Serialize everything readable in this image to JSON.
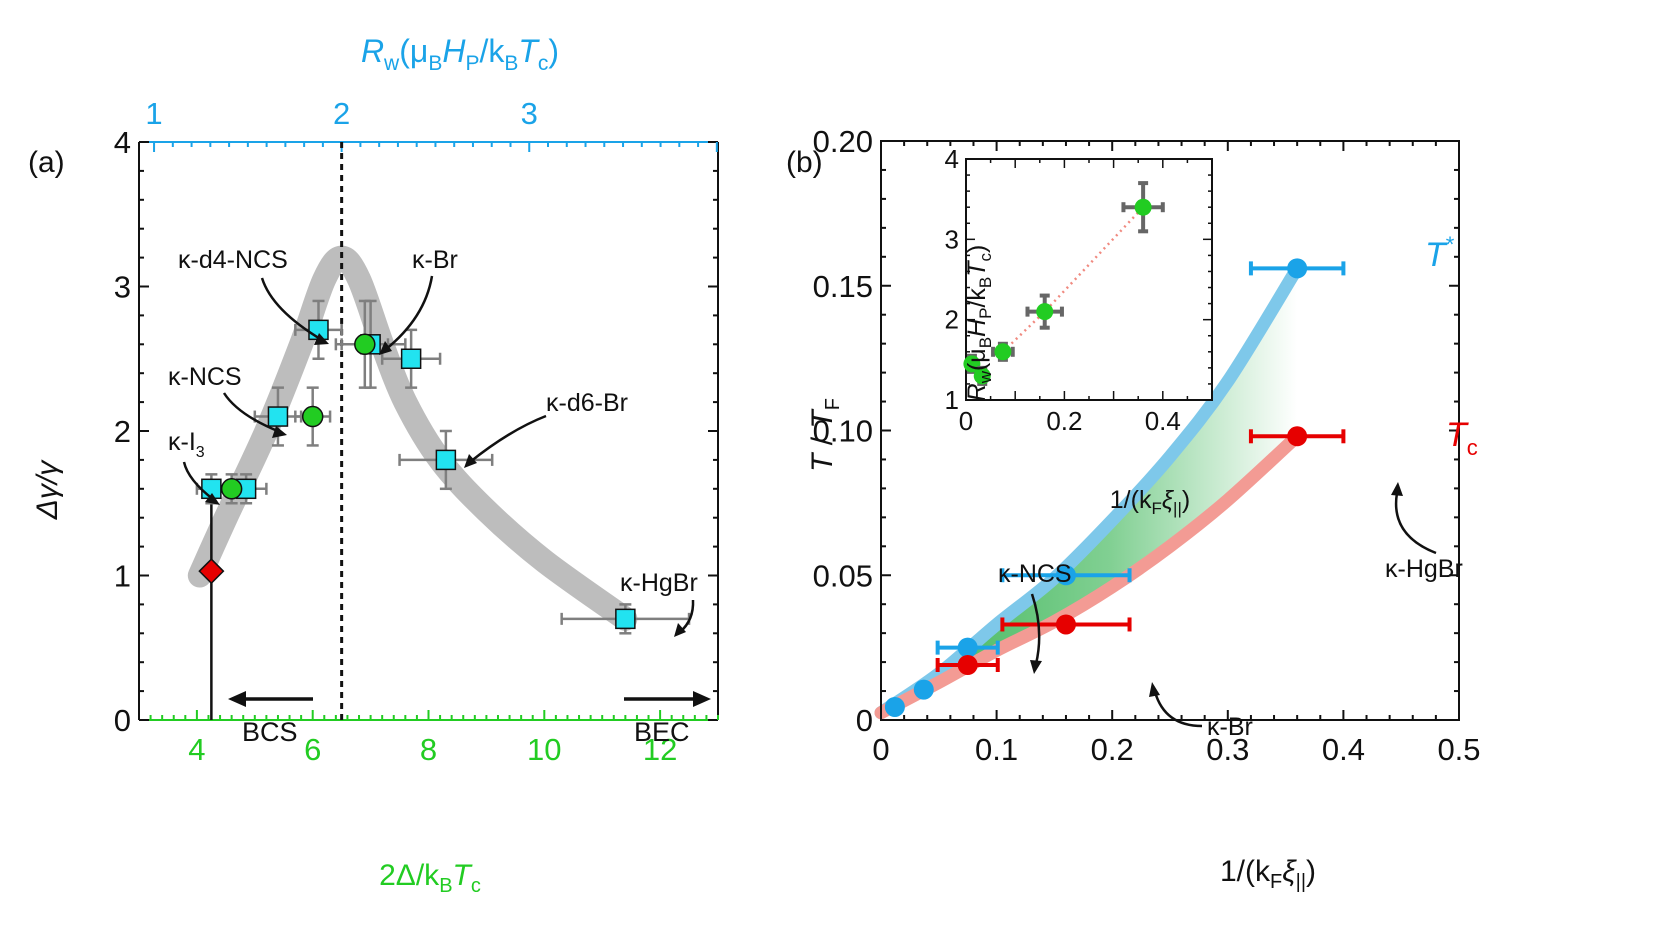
{
  "colors": {
    "cyan": "#1aa3e8",
    "green": "#22cc22",
    "red": "#e60000",
    "gray": "#7f7f7f",
    "band": "#bdbdbd",
    "sq": "#22e3f0",
    "tband": "#7ec8ea",
    "tcband": "#f39b94",
    "gfill": "#2db04a"
  },
  "chart_data": [
    {
      "type": "scatter",
      "panel": "(a)",
      "ylabel": "Δγ/γ",
      "xlabel": "2Δ/kBTc",
      "top_axis_label": "Rw(μBHP/kBTc)",
      "xlim": [
        3,
        13
      ],
      "ylim": [
        0,
        4
      ],
      "x_ticks": [
        "4",
        "6",
        "8",
        "10",
        "12"
      ],
      "y_ticks": [
        "0",
        "1",
        "2",
        "3",
        "4"
      ],
      "top_ticks": [
        "1",
        "2",
        "3"
      ],
      "top_tick_positions": [
        3.26,
        6.5,
        9.74
      ],
      "dashed_x": 6.5,
      "squares": [
        {
          "x": 4.25,
          "y": 1.6,
          "xerr": 0.25,
          "yerr": 0.1
        },
        {
          "x": 4.85,
          "y": 1.6,
          "xerr": 0.35,
          "yerr": 0.1
        },
        {
          "x": 5.4,
          "y": 2.1,
          "xerr": 0.4,
          "yerr": 0.2
        },
        {
          "x": 6.1,
          "y": 2.7,
          "xerr": 0.4,
          "yerr": 0.2
        },
        {
          "x": 7.0,
          "y": 2.6,
          "xerr": 0.6,
          "yerr": 0.3
        },
        {
          "x": 7.7,
          "y": 2.5,
          "xerr": 0.5,
          "yerr": 0.2
        },
        {
          "x": 8.3,
          "y": 1.8,
          "xerr": 0.8,
          "yerr": 0.2
        },
        {
          "x": 11.4,
          "y": 0.7,
          "xerr": 1.1,
          "yerr": 0.1
        }
      ],
      "circles": [
        {
          "x": 4.6,
          "y": 1.6,
          "xerr": 0.2,
          "yerr": 0.1
        },
        {
          "x": 6.0,
          "y": 2.1,
          "xerr": 0.3,
          "yerr": 0.2
        },
        {
          "x": 6.9,
          "y": 2.6,
          "xerr": 0.4,
          "yerr": 0.3
        }
      ],
      "diamond": {
        "x": 4.25,
        "y": 1.03
      },
      "vline_x": 4.25,
      "vline_y": [
        0,
        1.6
      ],
      "band": [
        [
          4.05,
          1.0
        ],
        [
          4.5,
          1.4
        ],
        [
          5.2,
          2.0
        ],
        [
          5.8,
          2.6
        ],
        [
          6.2,
          3.05
        ],
        [
          6.5,
          3.2
        ],
        [
          6.8,
          3.05
        ],
        [
          7.2,
          2.6
        ],
        [
          7.6,
          2.2
        ],
        [
          8.2,
          1.8
        ],
        [
          9.0,
          1.45
        ],
        [
          10.0,
          1.1
        ],
        [
          11.4,
          0.7
        ]
      ],
      "labels": {
        "panel": "(a)",
        "i3": "κ-I",
        "i3_sub": "3",
        "ncs": "κ-NCS",
        "d4ncs": "κ-d4-NCS",
        "br": "κ-Br",
        "d6br": "κ-d6-Br",
        "hgbr": "κ-HgBr",
        "bcs": "BCS",
        "bec": "BEC"
      },
      "axis_title_parts": {
        "y_main": "Δγ/γ",
        "x_pre": "2Δ/k",
        "x_sub1": "B",
        "x_mid": "T",
        "x_sub2": "c",
        "top_R": "R",
        "top_w": "w",
        "top_paren_mu": "(μ",
        "top_B": "B",
        "top_H": "H",
        "top_P": "P",
        "top_slash_k": "/k",
        "top_B2": "B",
        "top_T": "T",
        "top_c": "c",
        "top_close": ")"
      }
    },
    {
      "type": "line",
      "panel": "(b)",
      "ylabel": "T / TF",
      "xlabel": "1/(kFξ||)",
      "xlim": [
        0,
        0.5
      ],
      "ylim": [
        0,
        0.2
      ],
      "x_ticks": [
        "0",
        "0.1",
        "0.2",
        "0.3",
        "0.4",
        "0.5"
      ],
      "y_ticks": [
        "0",
        "0.05",
        "0.10",
        "0.15",
        "0.20"
      ],
      "series": [
        {
          "name": "T*",
          "points": [
            {
              "x": 0.012,
              "y": 0.0045,
              "xerr": 0
            },
            {
              "x": 0.037,
              "y": 0.0105,
              "xerr": 0
            },
            {
              "x": 0.075,
              "y": 0.025,
              "xerr": 0.026
            },
            {
              "x": 0.16,
              "y": 0.05,
              "xerr": 0.055
            },
            {
              "x": 0.36,
              "y": 0.156,
              "xerr": 0.04
            }
          ]
        },
        {
          "name": "Tc",
          "points": [
            {
              "x": 0.075,
              "y": 0.019,
              "xerr": 0.026
            },
            {
              "x": 0.16,
              "y": 0.033,
              "xerr": 0.055
            },
            {
              "x": 0.36,
              "y": 0.098,
              "xerr": 0.04
            }
          ]
        }
      ],
      "tstar_curve": [
        [
          0.0,
          0.0025
        ],
        [
          0.05,
          0.016
        ],
        [
          0.1,
          0.033
        ],
        [
          0.15,
          0.049
        ],
        [
          0.2,
          0.069
        ],
        [
          0.25,
          0.091
        ],
        [
          0.3,
          0.117
        ],
        [
          0.36,
          0.156
        ]
      ],
      "tc_curve": [
        [
          0.0,
          0.0025
        ],
        [
          0.05,
          0.013
        ],
        [
          0.1,
          0.024
        ],
        [
          0.15,
          0.034
        ],
        [
          0.2,
          0.046
        ],
        [
          0.25,
          0.06
        ],
        [
          0.3,
          0.076
        ],
        [
          0.36,
          0.098
        ]
      ],
      "labels": {
        "panel": "(b)",
        "tstar_T": "T",
        "tstar_sup": "*",
        "tc_T": "T",
        "tc_sub": "c",
        "ncs": "κ-NCS",
        "br": "κ-Br",
        "hgbr": "κ-HgBr"
      },
      "axis_title_parts": {
        "y_T": "T",
        "y_slash": " / ",
        "y_TF": "T",
        "y_F": "F",
        "x_pre": "1/(k",
        "x_F": "F",
        "x_xi": "ξ",
        "x_par": "||",
        "x_close": ")"
      },
      "inset": {
        "xlim": [
          0,
          0.5
        ],
        "ylim": [
          1,
          4
        ],
        "x_ticks": [
          "0",
          "0.2",
          "0.4"
        ],
        "y_ticks": [
          "1",
          "2",
          "3",
          "4"
        ],
        "points": [
          {
            "x": 0.012,
            "y": 1.45,
            "xerr": 0.008,
            "yerr": 0.1
          },
          {
            "x": 0.033,
            "y": 1.3,
            "xerr": 0.01,
            "yerr": 0.1
          },
          {
            "x": 0.075,
            "y": 1.6,
            "xerr": 0.02,
            "yerr": 0.1
          },
          {
            "x": 0.16,
            "y": 2.1,
            "xerr": 0.035,
            "yerr": 0.2
          },
          {
            "x": 0.36,
            "y": 3.4,
            "xerr": 0.04,
            "yerr": 0.3
          }
        ],
        "axis_title_parts": {
          "y_R": "R",
          "y_w": "w",
          "y_paren_mu": "(μ",
          "y_B": "B",
          "y_H": "H",
          "y_P": "P",
          "y_slash_k": "/k",
          "y_B2": "B",
          "y_T": "T",
          "y_c": "c",
          "y_close": ")",
          "x_pre": "1/(k",
          "x_F": "F",
          "x_xi": "ξ",
          "x_par": "||",
          "x_close": ")"
        }
      }
    }
  ]
}
